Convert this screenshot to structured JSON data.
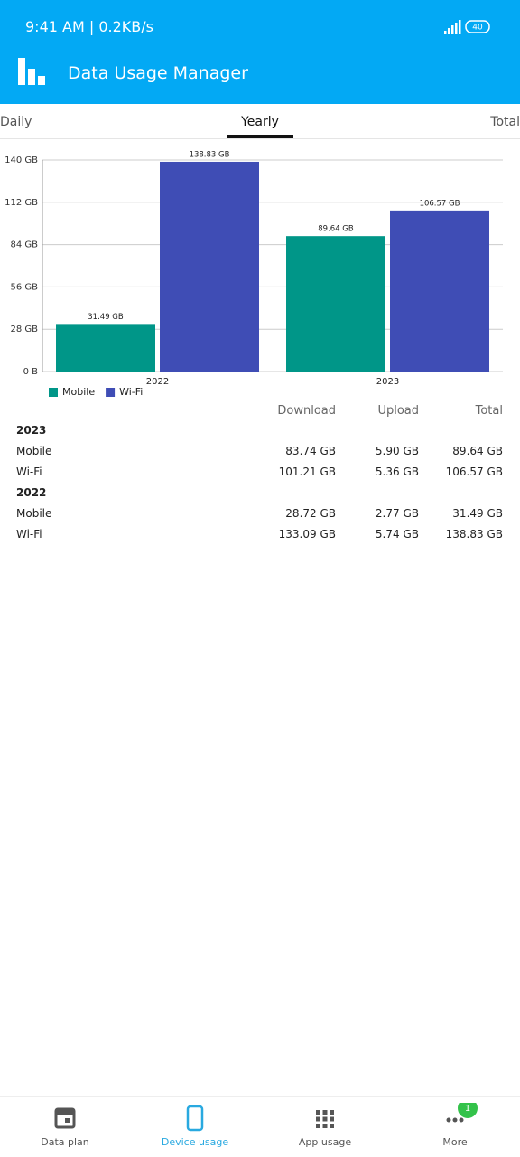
{
  "status_bar": {
    "time": "9:41 AM | 0.2KB/s",
    "battery": "40"
  },
  "app_bar": {
    "title": "Data Usage Manager"
  },
  "tabs": {
    "items": [
      "Daily",
      "Yearly",
      "Total"
    ],
    "active": 1
  },
  "chart_data": {
    "type": "bar",
    "categories": [
      "2022",
      "2023"
    ],
    "series": [
      {
        "name": "Mobile",
        "color": "#009688",
        "values": [
          31.49,
          89.64
        ],
        "value_labels": [
          "31.49 GB",
          "89.64 GB"
        ]
      },
      {
        "name": "Wi-Fi",
        "color": "#3f4db5",
        "values": [
          138.83,
          106.57
        ],
        "value_labels": [
          "138.83 GB",
          "106.57 GB"
        ]
      }
    ],
    "ylim": [
      0,
      140
    ],
    "yticks": [
      {
        "value": 0,
        "label": "0 B"
      },
      {
        "value": 28,
        "label": "28 GB"
      },
      {
        "value": 56,
        "label": "56 GB"
      },
      {
        "value": 84,
        "label": "84 GB"
      },
      {
        "value": 112,
        "label": "112 GB"
      },
      {
        "value": 140,
        "label": "140 GB"
      }
    ],
    "grid": true,
    "legend": "bottom-left"
  },
  "table": {
    "columns": [
      "Download",
      "Upload",
      "Total"
    ],
    "groups": [
      {
        "year": "2023",
        "rows": [
          [
            "Mobile",
            "83.74 GB",
            "5.90 GB",
            "89.64 GB"
          ],
          [
            "Wi-Fi",
            "101.21 GB",
            "5.36 GB",
            "106.57 GB"
          ]
        ]
      },
      {
        "year": "2022",
        "rows": [
          [
            "Mobile",
            "28.72 GB",
            "2.77 GB",
            "31.49 GB"
          ],
          [
            "Wi-Fi",
            "133.09 GB",
            "5.74 GB",
            "138.83 GB"
          ]
        ]
      }
    ]
  },
  "bottom_nav": {
    "items": [
      "Data plan",
      "Device usage",
      "App usage",
      "More"
    ],
    "active": 1,
    "badge": "1"
  }
}
